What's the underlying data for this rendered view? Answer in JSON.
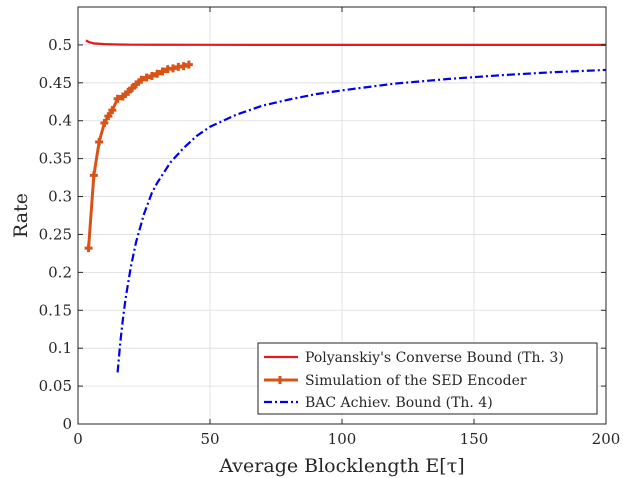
{
  "chart_data": {
    "type": "line",
    "xlabel": "Average Blocklength E[τ]",
    "ylabel": "Rate",
    "xlim": [
      0,
      200
    ],
    "ylim": [
      0,
      0.55
    ],
    "xticks": [
      0,
      50,
      100,
      150,
      200
    ],
    "yticks": [
      0,
      0.05,
      0.1,
      0.15,
      0.2,
      0.25,
      0.3,
      0.35,
      0.4,
      0.45,
      0.5
    ],
    "xtick_labels": [
      "0",
      "50",
      "100",
      "150",
      "200"
    ],
    "ytick_labels": [
      "0",
      "0.05",
      "0.1",
      "0.15",
      "0.2",
      "0.25",
      "0.3",
      "0.35",
      "0.4",
      "0.45",
      "0.5"
    ],
    "grid": true,
    "legend_position": "bottom-right",
    "series": [
      {
        "name": "Polyanskiy's Converse Bound (Th. 3)",
        "color": "#e41a1c",
        "style": "solid",
        "marker": "none",
        "x": [
          3,
          4,
          5,
          6,
          8,
          10,
          15,
          20,
          30,
          50,
          75,
          100,
          150,
          200
        ],
        "y": [
          0.506,
          0.504,
          0.503,
          0.502,
          0.5015,
          0.501,
          0.5005,
          0.5003,
          0.5002,
          0.5001,
          0.5,
          0.5,
          0.5,
          0.5
        ]
      },
      {
        "name": "Simulation of the SED Encoder",
        "color": "#d95319",
        "style": "solid",
        "marker": "plus",
        "x": [
          4,
          6,
          8,
          10,
          11.5,
          13,
          15,
          17,
          19,
          20.5,
          22,
          24,
          26,
          28,
          30,
          32,
          34,
          36,
          38,
          40,
          42
        ],
        "y": [
          0.232,
          0.328,
          0.372,
          0.397,
          0.406,
          0.414,
          0.429,
          0.432,
          0.438,
          0.443,
          0.448,
          0.454,
          0.457,
          0.459,
          0.462,
          0.465,
          0.468,
          0.469,
          0.471,
          0.472,
          0.474
        ]
      },
      {
        "name": "BAC Achiev. Bound (Th. 4)",
        "color": "#0000ee",
        "style": "dash-dot",
        "marker": "none",
        "x": [
          15,
          16,
          17,
          18,
          20,
          22,
          25,
          28,
          30,
          35,
          40,
          45,
          50,
          60,
          70,
          80,
          90,
          100,
          120,
          140,
          160,
          180,
          200
        ],
        "y": [
          0.068,
          0.107,
          0.138,
          0.165,
          0.207,
          0.24,
          0.277,
          0.305,
          0.318,
          0.345,
          0.364,
          0.38,
          0.392,
          0.408,
          0.42,
          0.428,
          0.435,
          0.44,
          0.449,
          0.455,
          0.46,
          0.464,
          0.467
        ]
      }
    ]
  }
}
